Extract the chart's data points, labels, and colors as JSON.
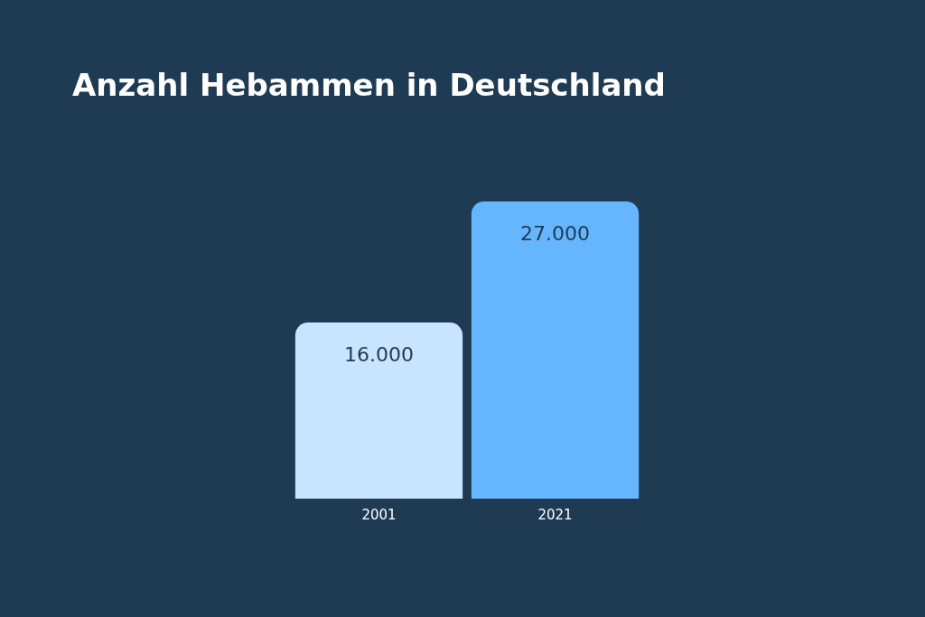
{
  "chart_data": {
    "type": "bar",
    "title": "Anzahl Hebammen in Deutschland",
    "categories": [
      "2001",
      "2021"
    ],
    "values": [
      16000,
      27000
    ],
    "colors": [
      "#c8e4ff",
      "#66b6ff"
    ],
    "value_labels": [
      "16.000",
      "27.000"
    ],
    "grid": false,
    "legend": false
  }
}
